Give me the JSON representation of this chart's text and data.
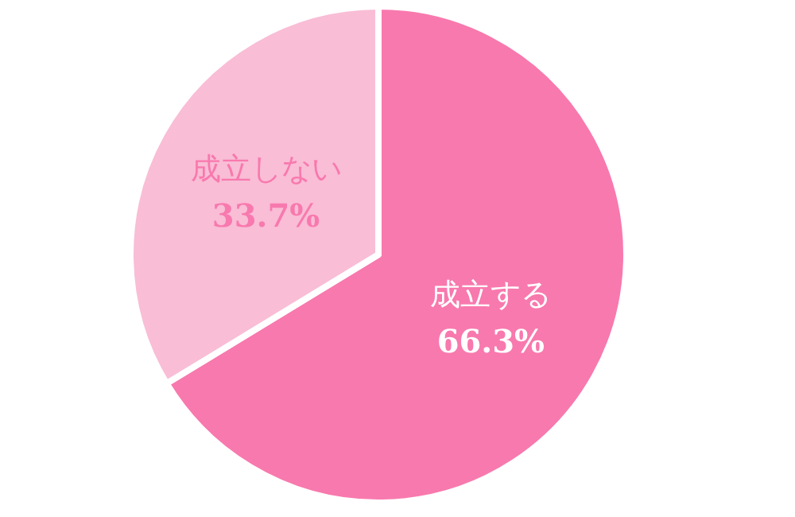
{
  "chart_data": {
    "type": "pie",
    "categories": [
      "成立する",
      "成立しない"
    ],
    "values": [
      66.3,
      33.7
    ],
    "colors": [
      "#f879ae",
      "#f9bdd6"
    ],
    "value_labels": [
      "66.3%",
      "33.7%"
    ]
  }
}
